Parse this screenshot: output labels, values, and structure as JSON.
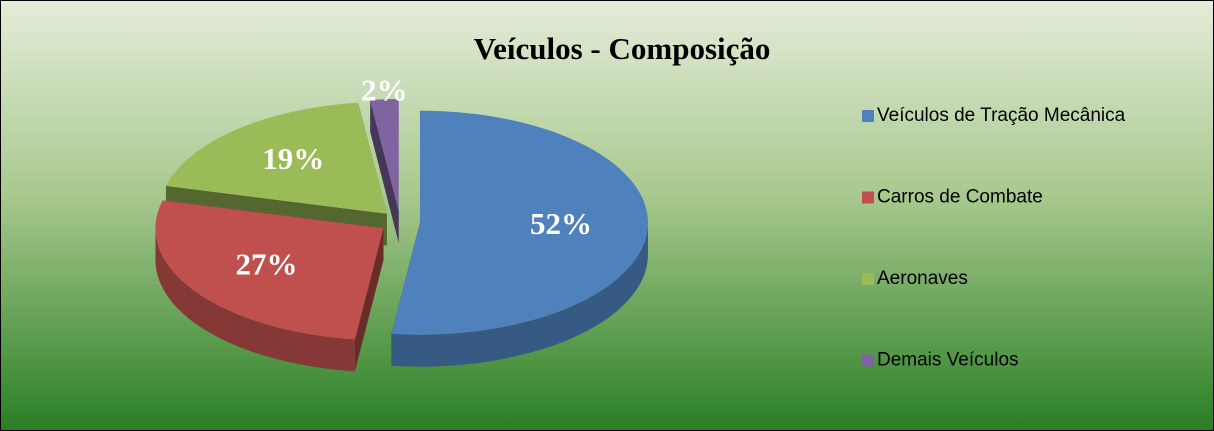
{
  "chart_data": {
    "type": "pie3d",
    "title": "Veículos - Composição",
    "categories": [
      "Veículos de Tração Mecânica",
      "Carros de Combate",
      "Aeronaves",
      "Demais Veículos"
    ],
    "values": [
      52,
      27,
      19,
      2
    ],
    "value_labels": [
      "52%",
      "27%",
      "19%",
      "2%"
    ],
    "colors": [
      "#4f81bd",
      "#c0504d",
      "#9bbb59",
      "#8064a2"
    ],
    "legend": "right"
  }
}
